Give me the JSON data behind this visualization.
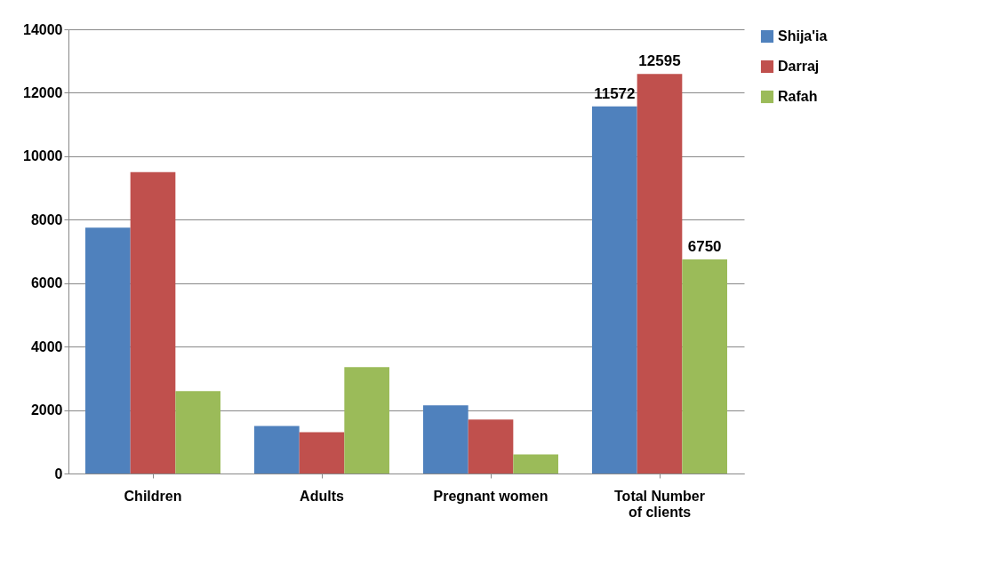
{
  "chart_data": {
    "type": "bar",
    "categories": [
      "Children",
      "Adults",
      "Pregnant women",
      "Total Number of clients"
    ],
    "series": [
      {
        "name": "Shija'ia",
        "color": "#4f81bd",
        "values": [
          7750,
          1500,
          2150,
          11572
        ],
        "value_labels": [
          null,
          null,
          null,
          "11572"
        ]
      },
      {
        "name": "Darraj",
        "color": "#c0504d",
        "values": [
          9500,
          1300,
          1700,
          12595
        ],
        "value_labels": [
          null,
          null,
          null,
          "12595"
        ]
      },
      {
        "name": "Rafah",
        "color": "#9bbb59",
        "values": [
          2600,
          3350,
          600,
          6750
        ],
        "value_labels": [
          null,
          null,
          null,
          "6750"
        ]
      }
    ],
    "ylim": [
      0,
      14000
    ],
    "yticks": [
      0,
      2000,
      4000,
      6000,
      8000,
      10000,
      12000,
      14000
    ],
    "grid": "y",
    "legend": "right"
  }
}
